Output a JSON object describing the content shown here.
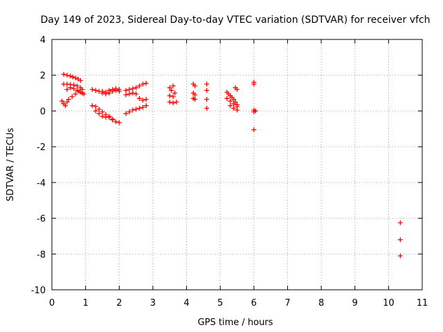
{
  "chart_data": {
    "type": "scatter",
    "title": "Day 149 of 2023, Sidereal Day-to-day VTEC variation (SDTVAR) for receiver vfch",
    "xlabel": "GPS time / hours",
    "ylabel": "SDTVAR / TECUs",
    "xlim": [
      0,
      11
    ],
    "ylim": [
      -10,
      4
    ],
    "xticks": [
      "0",
      "1",
      "2",
      "3",
      "4",
      "5",
      "6",
      "7",
      "8",
      "9",
      "10",
      "11"
    ],
    "yticks": [
      "-10",
      "-8",
      "-6",
      "-4",
      "-2",
      "0",
      "2",
      "4"
    ],
    "grid": true,
    "marker": "+",
    "marker_color": "#ff0000",
    "series": [
      {
        "name": "SDTVAR",
        "points": [
          [
            0.35,
            2.05
          ],
          [
            0.45,
            2.0
          ],
          [
            0.55,
            1.95
          ],
          [
            0.62,
            1.9
          ],
          [
            0.7,
            1.85
          ],
          [
            0.78,
            1.78
          ],
          [
            0.85,
            1.7
          ],
          [
            0.35,
            1.5
          ],
          [
            0.45,
            1.5
          ],
          [
            0.55,
            1.48
          ],
          [
            0.65,
            1.45
          ],
          [
            0.75,
            1.4
          ],
          [
            0.85,
            1.3
          ],
          [
            0.9,
            1.2
          ],
          [
            0.45,
            1.2
          ],
          [
            0.55,
            1.3
          ],
          [
            0.65,
            1.25
          ],
          [
            0.75,
            1.15
          ],
          [
            0.85,
            1.05
          ],
          [
            0.95,
            0.95
          ],
          [
            0.3,
            0.55
          ],
          [
            0.35,
            0.4
          ],
          [
            0.4,
            0.3
          ],
          [
            0.45,
            0.5
          ],
          [
            0.5,
            0.65
          ],
          [
            0.6,
            0.8
          ],
          [
            0.7,
            0.95
          ],
          [
            0.8,
            1.1
          ],
          [
            0.9,
            1.0
          ],
          [
            1.2,
            1.2
          ],
          [
            1.3,
            1.15
          ],
          [
            1.4,
            1.1
          ],
          [
            1.5,
            1.0
          ],
          [
            1.6,
            0.95
          ],
          [
            1.7,
            1.0
          ],
          [
            1.8,
            1.1
          ],
          [
            1.9,
            1.15
          ],
          [
            2.0,
            1.2
          ],
          [
            1.5,
            1.1
          ],
          [
            1.6,
            1.05
          ],
          [
            1.7,
            1.15
          ],
          [
            1.8,
            1.2
          ],
          [
            1.9,
            1.25
          ],
          [
            2.0,
            1.1
          ],
          [
            1.2,
            0.3
          ],
          [
            1.3,
            0.25
          ],
          [
            1.4,
            0.1
          ],
          [
            1.5,
            -0.05
          ],
          [
            1.6,
            -0.2
          ],
          [
            1.7,
            -0.35
          ],
          [
            1.8,
            -0.5
          ],
          [
            1.9,
            -0.6
          ],
          [
            2.0,
            -0.65
          ],
          [
            1.3,
            0.0
          ],
          [
            1.4,
            -0.15
          ],
          [
            1.5,
            -0.3
          ],
          [
            1.6,
            -0.35
          ],
          [
            1.7,
            -0.3
          ],
          [
            1.8,
            -0.45
          ],
          [
            2.2,
            1.15
          ],
          [
            2.3,
            1.2
          ],
          [
            2.4,
            1.25
          ],
          [
            2.5,
            1.3
          ],
          [
            2.6,
            1.4
          ],
          [
            2.7,
            1.5
          ],
          [
            2.8,
            1.55
          ],
          [
            2.2,
            0.9
          ],
          [
            2.3,
            0.95
          ],
          [
            2.4,
            1.0
          ],
          [
            2.5,
            0.95
          ],
          [
            2.6,
            0.7
          ],
          [
            2.7,
            0.6
          ],
          [
            2.8,
            0.65
          ],
          [
            2.2,
            -0.15
          ],
          [
            2.3,
            -0.05
          ],
          [
            2.4,
            0.05
          ],
          [
            2.5,
            0.1
          ],
          [
            2.6,
            0.15
          ],
          [
            2.7,
            0.2
          ],
          [
            2.8,
            0.3
          ],
          [
            3.5,
            1.3
          ],
          [
            3.6,
            1.4
          ],
          [
            3.55,
            1.15
          ],
          [
            3.65,
            1.0
          ],
          [
            3.5,
            0.85
          ],
          [
            3.6,
            0.8
          ],
          [
            3.5,
            0.5
          ],
          [
            3.6,
            0.45
          ],
          [
            3.7,
            0.5
          ],
          [
            4.2,
            1.5
          ],
          [
            4.25,
            1.4
          ],
          [
            4.2,
            1.0
          ],
          [
            4.25,
            0.9
          ],
          [
            4.2,
            0.7
          ],
          [
            4.25,
            0.65
          ],
          [
            4.6,
            1.5
          ],
          [
            4.6,
            1.15
          ],
          [
            4.6,
            0.65
          ],
          [
            4.6,
            0.15
          ],
          [
            5.2,
            1.05
          ],
          [
            5.25,
            0.95
          ],
          [
            5.3,
            0.85
          ],
          [
            5.35,
            0.75
          ],
          [
            5.4,
            0.65
          ],
          [
            5.45,
            0.5
          ],
          [
            5.5,
            0.35
          ],
          [
            5.2,
            0.7
          ],
          [
            5.3,
            0.55
          ],
          [
            5.4,
            0.4
          ],
          [
            5.5,
            0.25
          ],
          [
            5.3,
            0.3
          ],
          [
            5.4,
            0.15
          ],
          [
            5.5,
            0.05
          ],
          [
            5.45,
            1.3
          ],
          [
            5.5,
            1.2
          ],
          [
            6.0,
            1.6
          ],
          [
            6.0,
            1.5
          ],
          [
            6.0,
            0.05
          ],
          [
            6.0,
            -0.05
          ],
          [
            6.05,
            0.0
          ],
          [
            6.0,
            -1.05
          ],
          [
            10.35,
            -6.25
          ],
          [
            10.35,
            -7.2
          ],
          [
            10.35,
            -8.1
          ]
        ]
      }
    ]
  }
}
